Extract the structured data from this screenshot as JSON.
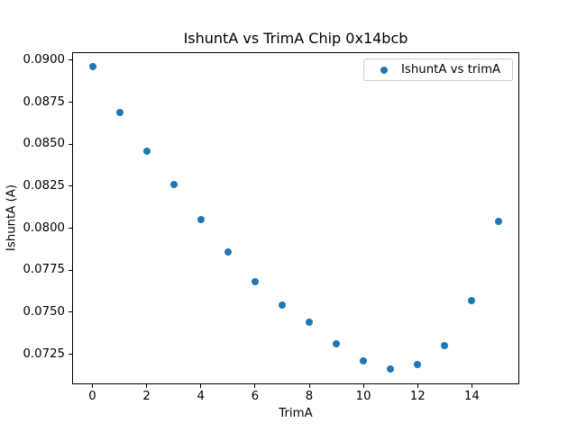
{
  "figure": {
    "background": "#ffffff"
  },
  "chart_data": {
    "type": "scatter",
    "title": "IshuntA vs TrimA Chip 0x14bcb",
    "xlabel": "TrimA",
    "ylabel": "IshuntA (A)",
    "legend_entries": [
      "IshuntA vs trimA"
    ],
    "legend_position": "upper right",
    "grid": false,
    "marker": "circle",
    "marker_color": "#1f77b4",
    "x": [
      0,
      1,
      2,
      3,
      4,
      5,
      6,
      7,
      8,
      9,
      10,
      11,
      12,
      13,
      14,
      15
    ],
    "y": [
      0.0896,
      0.0869,
      0.0846,
      0.0826,
      0.0805,
      0.0786,
      0.0768,
      0.0754,
      0.0744,
      0.0731,
      0.0721,
      0.0716,
      0.0719,
      0.073,
      0.0757,
      0.0804
    ],
    "xlim": [
      -0.75,
      15.75
    ],
    "ylim": [
      0.0707,
      0.0905
    ],
    "xticks": [
      0,
      2,
      4,
      6,
      8,
      10,
      12,
      14
    ],
    "xtick_labels": [
      "0",
      "2",
      "4",
      "6",
      "8",
      "10",
      "12",
      "14"
    ],
    "yticks": [
      0.0725,
      0.075,
      0.0775,
      0.08,
      0.0825,
      0.085,
      0.0875,
      0.09
    ],
    "ytick_labels": [
      "0.0725",
      "0.0750",
      "0.0775",
      "0.0800",
      "0.0825",
      "0.0850",
      "0.0875",
      "0.0900"
    ]
  }
}
